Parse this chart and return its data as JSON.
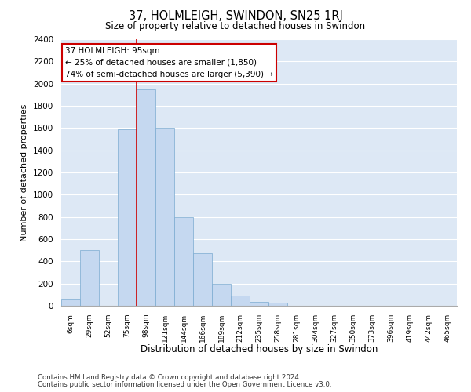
{
  "title": "37, HOLMLEIGH, SWINDON, SN25 1RJ",
  "subtitle": "Size of property relative to detached houses in Swindon",
  "xlabel": "Distribution of detached houses by size in Swindon",
  "ylabel": "Number of detached properties",
  "categories": [
    "6sqm",
    "29sqm",
    "52sqm",
    "75sqm",
    "98sqm",
    "121sqm",
    "144sqm",
    "166sqm",
    "189sqm",
    "212sqm",
    "235sqm",
    "258sqm",
    "281sqm",
    "304sqm",
    "327sqm",
    "350sqm",
    "373sqm",
    "396sqm",
    "419sqm",
    "442sqm",
    "465sqm"
  ],
  "bar_heights": [
    60,
    500,
    0,
    1590,
    1950,
    1600,
    800,
    470,
    195,
    90,
    35,
    30,
    0,
    0,
    0,
    0,
    0,
    0,
    0,
    0,
    0
  ],
  "bar_color": "#c5d8f0",
  "bar_edge_color": "#7aaad0",
  "vline_color": "#cc0000",
  "vline_position": 3.5,
  "annotation_text_line1": "37 HOLMLEIGH: 95sqm",
  "annotation_text_line2": "← 25% of detached houses are smaller (1,850)",
  "annotation_text_line3": "74% of semi-detached houses are larger (5,390) →",
  "ylim": [
    0,
    2400
  ],
  "yticks": [
    0,
    200,
    400,
    600,
    800,
    1000,
    1200,
    1400,
    1600,
    1800,
    2000,
    2200,
    2400
  ],
  "bg_color": "#dde8f5",
  "grid_color": "#ffffff",
  "footer_line1": "Contains HM Land Registry data © Crown copyright and database right 2024.",
  "footer_line2": "Contains public sector information licensed under the Open Government Licence v3.0."
}
